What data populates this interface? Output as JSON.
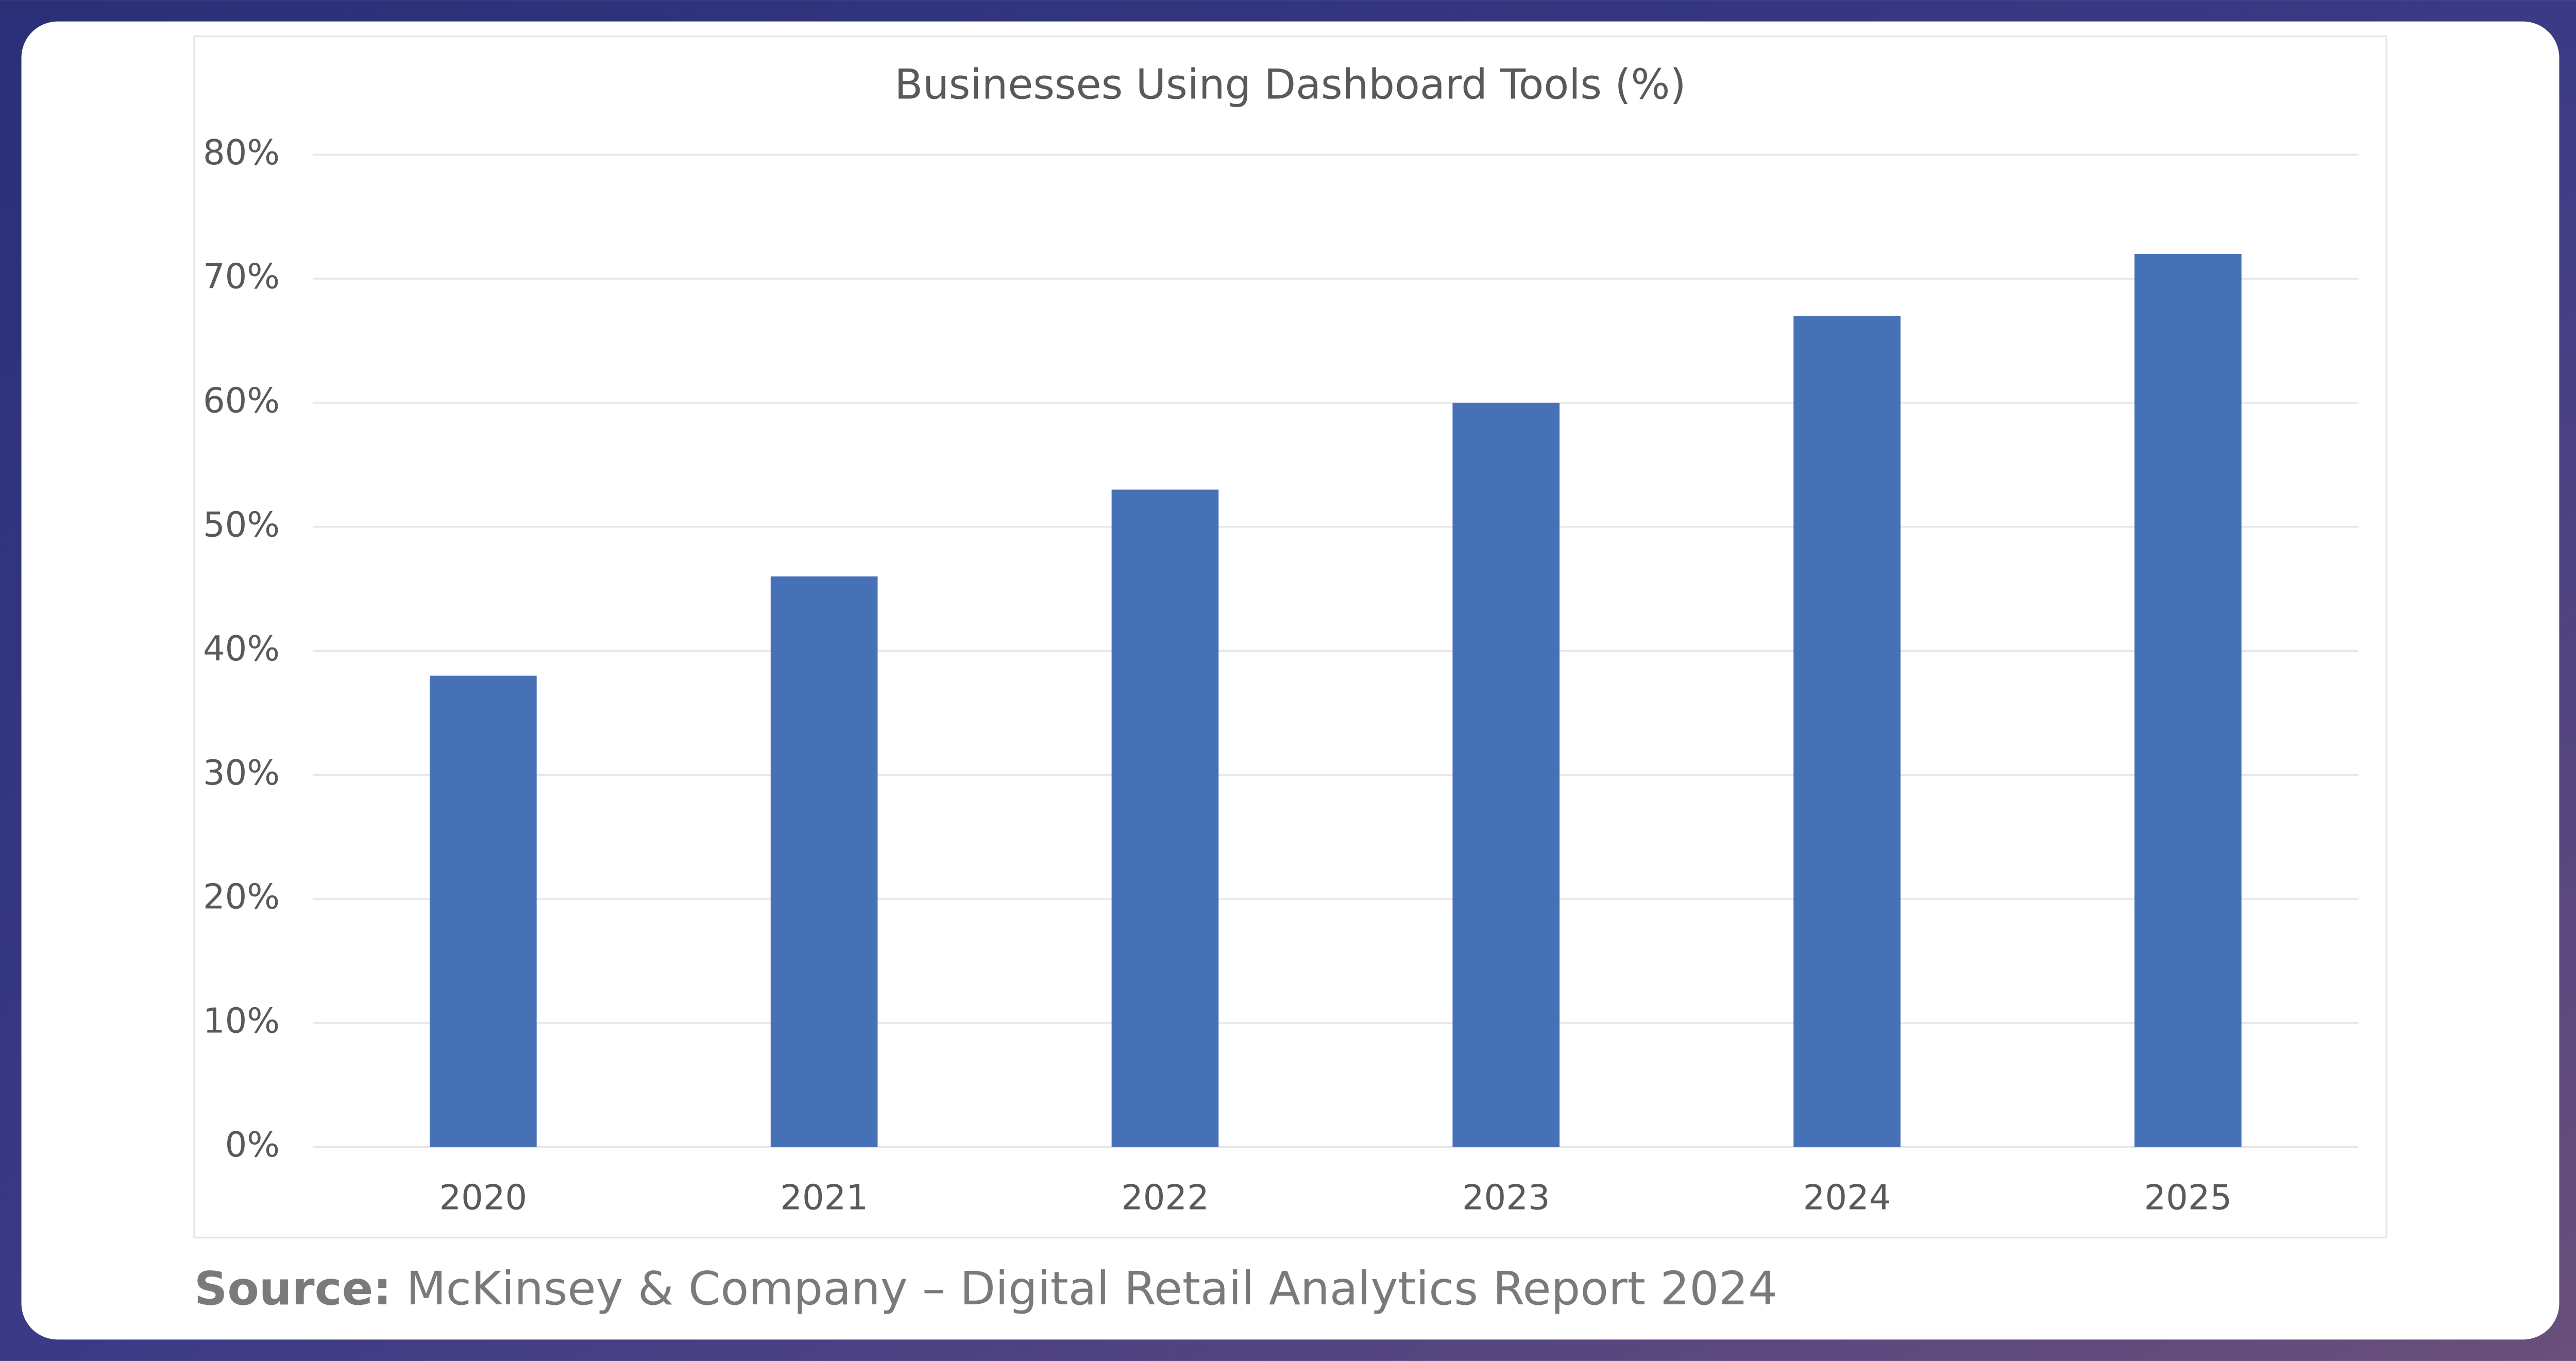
{
  "chart_data": {
    "type": "bar",
    "title": "Businesses Using Dashboard Tools (%)",
    "categories": [
      "2020",
      "2021",
      "2022",
      "2023",
      "2024",
      "2025"
    ],
    "values": [
      38,
      46,
      53,
      60,
      67,
      72
    ],
    "color": "#4671b6",
    "ylim": [
      0,
      80
    ],
    "yticks": [
      {
        "value": 0,
        "label": "0%"
      },
      {
        "value": 10,
        "label": "10%"
      },
      {
        "value": 20,
        "label": "20%"
      },
      {
        "value": 30,
        "label": "30%"
      },
      {
        "value": 40,
        "label": "40%"
      },
      {
        "value": 50,
        "label": "50%"
      },
      {
        "value": 60,
        "label": "60%"
      },
      {
        "value": 70,
        "label": "70%"
      },
      {
        "value": 80,
        "label": "80%"
      }
    ],
    "grid": true
  },
  "footer": {
    "label": "Source:",
    "text": "McKinsey & Company – Digital Retail Analytics Report 2024"
  }
}
